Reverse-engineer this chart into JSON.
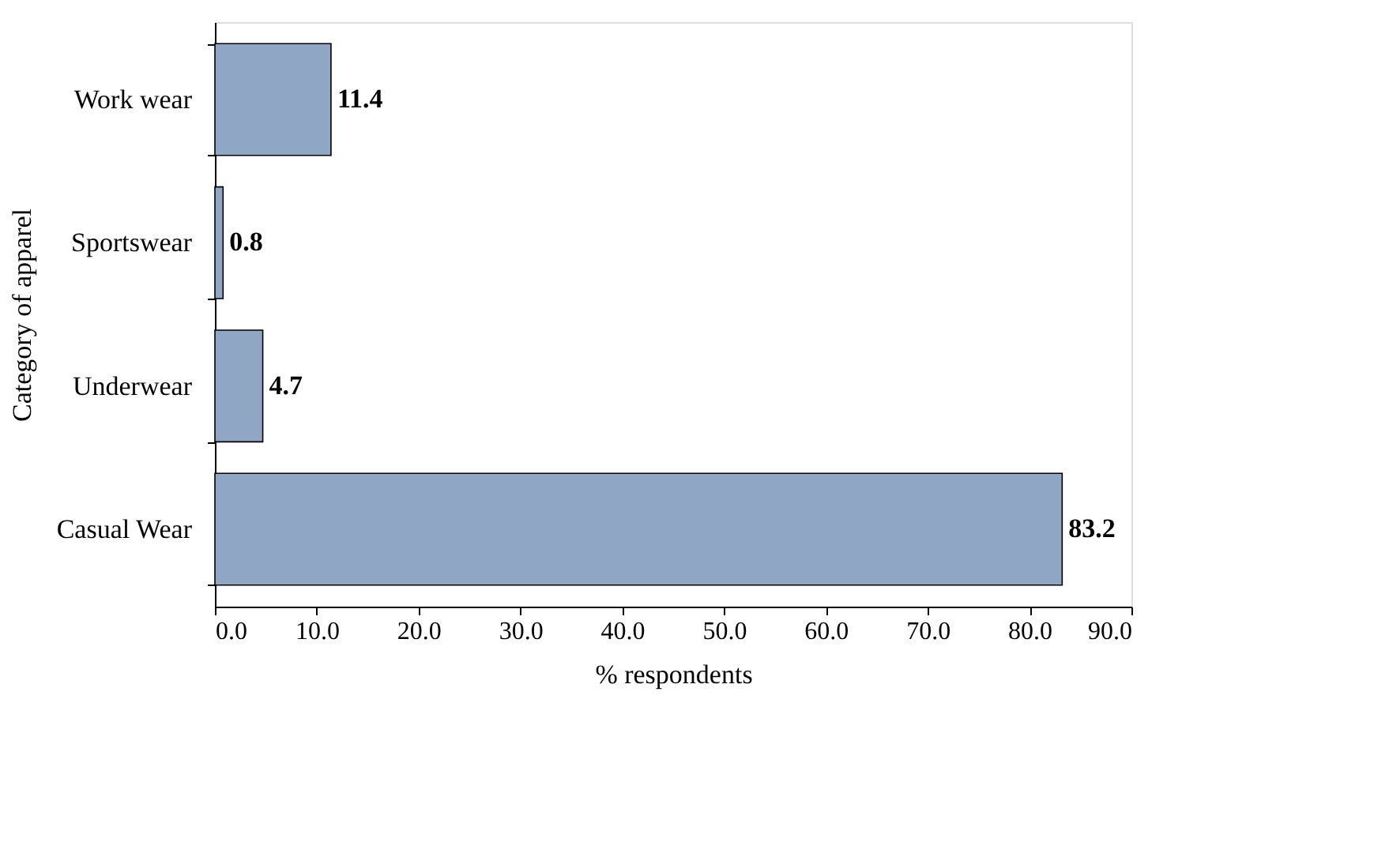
{
  "chart_data": {
    "type": "bar",
    "orientation": "horizontal",
    "xlabel": "% respondents",
    "ylabel": "Category of apparel",
    "categories": [
      "Work wear",
      "Sportswear",
      "Underwear",
      "Casual Wear"
    ],
    "values": [
      11.4,
      0.8,
      4.7,
      83.2
    ],
    "color": "#8fa6c4",
    "data_labels": true,
    "grid": false,
    "xlim": [
      0,
      90
    ],
    "xticks": [
      {
        "value": 0,
        "label": "0.0"
      },
      {
        "value": 10,
        "label": "10.0"
      },
      {
        "value": 20,
        "label": "20.0"
      },
      {
        "value": 30,
        "label": "30.0"
      },
      {
        "value": 40,
        "label": "40.0"
      },
      {
        "value": 50,
        "label": "50.0"
      },
      {
        "value": 60,
        "label": "60.0"
      },
      {
        "value": 70,
        "label": "70.0"
      },
      {
        "value": 80,
        "label": "80.0"
      },
      {
        "value": 90,
        "label": "90.0"
      }
    ]
  }
}
